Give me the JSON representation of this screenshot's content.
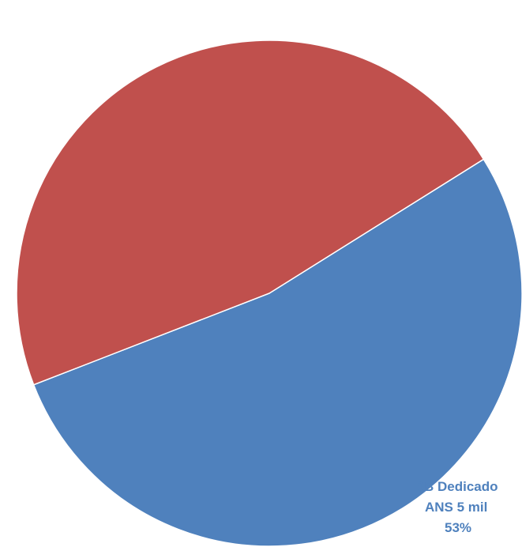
{
  "chart_data": {
    "type": "pie",
    "title": "",
    "slices": [
      {
        "label_lines": [
          "BB Dedicado",
          "ANS 5 mil",
          "53%"
        ],
        "value": 53,
        "color": "#4f81bd",
        "label_color": "#4f81bd"
      },
      {
        "label_lines": [],
        "value": 47,
        "color": "#c0504d",
        "label_color": "#c0504d"
      }
    ],
    "start_angle_deg": 58,
    "direction": "clockwise",
    "slice_border_color": "#ffffff",
    "legend": "none"
  }
}
